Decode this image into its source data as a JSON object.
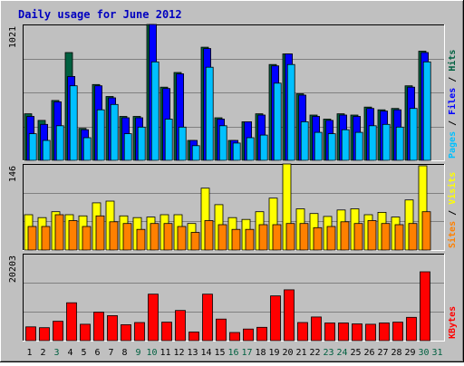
{
  "title": "Daily usage for June 2012",
  "colors": {
    "background": "#C0C0C0",
    "title": "#0000C0",
    "hits": "#006040",
    "files": "#0000FF",
    "pages": "#00C0FF",
    "visits": "#FFFF00",
    "sites": "#FF8000",
    "kbytes": "#FF0000",
    "weekend_day": "#006040",
    "weekday": "#000000",
    "grid": "#808080"
  },
  "chart_data": [
    {
      "type": "bar",
      "panel": "hits-files-pages",
      "right_label_parts": [
        "Pages",
        "Files",
        "Hits"
      ],
      "ymax_label": "1021",
      "ylim": [
        0,
        1021
      ],
      "grid": true,
      "categories": [
        "1",
        "2",
        "3",
        "4",
        "5",
        "6",
        "7",
        "8",
        "9",
        "10",
        "11",
        "12",
        "13",
        "14",
        "15",
        "16",
        "17",
        "18",
        "19",
        "20",
        "21",
        "22",
        "23",
        "24",
        "25",
        "26",
        "27",
        "28",
        "29",
        "30",
        "31"
      ],
      "series": [
        {
          "name": "Hits",
          "values": [
            350,
            300,
            450,
            810,
            240,
            570,
            480,
            330,
            330,
            1021,
            550,
            660,
            150,
            850,
            320,
            150,
            290,
            350,
            720,
            800,
            500,
            340,
            310,
            350,
            340,
            400,
            380,
            390,
            560,
            820,
            0
          ]
        },
        {
          "name": "Files",
          "values": [
            330,
            270,
            440,
            630,
            230,
            560,
            470,
            320,
            320,
            1021,
            540,
            650,
            150,
            840,
            310,
            150,
            290,
            340,
            710,
            800,
            490,
            330,
            300,
            340,
            330,
            390,
            370,
            380,
            550,
            810,
            0
          ]
        },
        {
          "name": "Pages",
          "values": [
            200,
            150,
            260,
            560,
            170,
            380,
            420,
            200,
            250,
            740,
            310,
            250,
            110,
            700,
            260,
            130,
            170,
            190,
            580,
            720,
            290,
            210,
            200,
            230,
            210,
            260,
            270,
            250,
            390,
            740,
            0
          ]
        }
      ]
    },
    {
      "type": "bar",
      "panel": "visits-sites",
      "right_label_parts": [
        "Sites",
        "Visits"
      ],
      "ymax_label": "146",
      "ylim": [
        0,
        146
      ],
      "grid": true,
      "categories": [
        "1",
        "2",
        "3",
        "4",
        "5",
        "6",
        "7",
        "8",
        "9",
        "10",
        "11",
        "12",
        "13",
        "14",
        "15",
        "16",
        "17",
        "18",
        "19",
        "20",
        "21",
        "22",
        "23",
        "24",
        "25",
        "26",
        "27",
        "28",
        "29",
        "30",
        "31"
      ],
      "series": [
        {
          "name": "Visits",
          "values": [
            60,
            55,
            65,
            60,
            58,
            80,
            83,
            58,
            55,
            56,
            60,
            60,
            45,
            105,
            77,
            55,
            52,
            65,
            88,
            146,
            70,
            62,
            57,
            68,
            70,
            60,
            64,
            56,
            85,
            143,
            0
          ]
        },
        {
          "name": "Sites",
          "values": [
            40,
            40,
            60,
            50,
            40,
            58,
            48,
            45,
            35,
            45,
            45,
            40,
            30,
            50,
            43,
            35,
            35,
            43,
            43,
            45,
            45,
            38,
            40,
            48,
            45,
            50,
            45,
            43,
            45,
            65,
            0
          ]
        }
      ]
    },
    {
      "type": "bar",
      "panel": "kbytes",
      "right_label_parts": [
        "KBytes"
      ],
      "ymax_label": "20203",
      "ylim": [
        0,
        20203
      ],
      "grid": true,
      "categories": [
        "1",
        "2",
        "3",
        "4",
        "5",
        "6",
        "7",
        "8",
        "9",
        "10",
        "11",
        "12",
        "13",
        "14",
        "15",
        "16",
        "17",
        "18",
        "19",
        "20",
        "21",
        "22",
        "23",
        "24",
        "25",
        "26",
        "27",
        "28",
        "29",
        "30",
        "31"
      ],
      "series": [
        {
          "name": "KBytes",
          "values": [
            3200,
            3000,
            4500,
            8800,
            3800,
            6600,
            5800,
            3700,
            4200,
            10800,
            4300,
            7000,
            2000,
            10800,
            5000,
            1900,
            2700,
            3100,
            10400,
            11800,
            4200,
            5500,
            4100,
            4100,
            3900,
            3800,
            4100,
            4300,
            5400,
            16000,
            0
          ]
        }
      ]
    }
  ],
  "weekend_days": [
    3,
    9,
    10,
    16,
    17,
    23,
    24,
    30,
    31
  ]
}
